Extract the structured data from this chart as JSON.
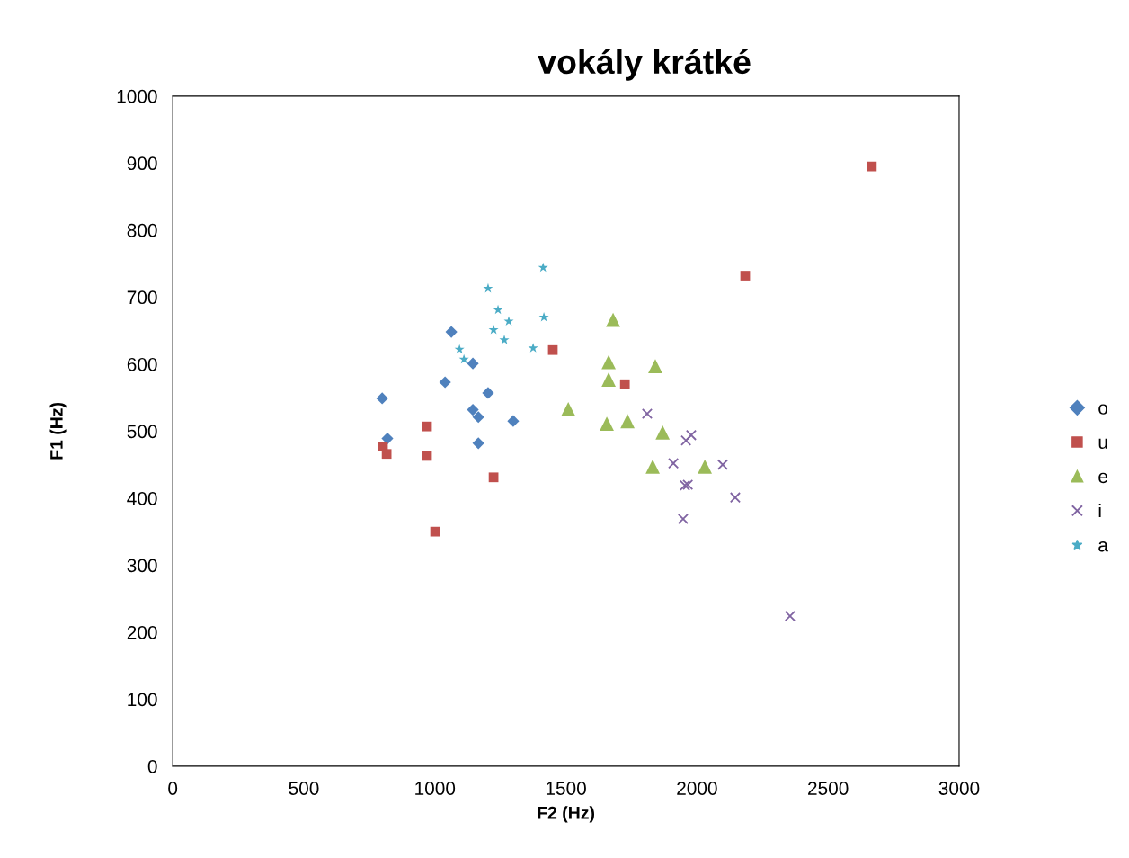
{
  "chart_data": {
    "type": "scatter",
    "title": "vokály krátké",
    "xlabel": "F2 (Hz)",
    "ylabel": "F1 (Hz)",
    "xlim": [
      0,
      3000
    ],
    "xticks": [
      0,
      500,
      1000,
      1500,
      2000,
      2500,
      3000
    ],
    "ylim": [
      0,
      1000
    ],
    "yticks": [
      0,
      100,
      200,
      300,
      400,
      500,
      600,
      700,
      800,
      900,
      1000
    ],
    "grid": false,
    "legend": "right",
    "series": [
      {
        "name": "o",
        "color": "#4f81bd",
        "marker": "diamond",
        "x": [
          799,
          819,
          1063,
          1039,
          1145,
          1203,
          1145,
          1166,
          1299,
          1166
        ],
        "values": [
          549,
          489,
          648,
          573,
          601,
          557,
          532,
          521,
          515,
          482
        ]
      },
      {
        "name": "u",
        "color": "#c0504d",
        "marker": "square",
        "x": [
          802,
          816,
          970,
          970,
          1001,
          1224,
          1450,
          1725,
          2184,
          2667
        ],
        "values": [
          477,
          466,
          507,
          463,
          350,
          431,
          621,
          570,
          732,
          895
        ]
      },
      {
        "name": "e",
        "color": "#9bbb59",
        "marker": "triangle",
        "x": [
          1680,
          1663,
          1663,
          1841,
          1509,
          1656,
          1735,
          1869,
          1831,
          2030
        ],
        "values": [
          666,
          603,
          577,
          597,
          533,
          511,
          515,
          498,
          447,
          447
        ]
      },
      {
        "name": "i",
        "color": "#8064a2",
        "marker": "cross",
        "x": [
          1810,
          1910,
          1958,
          1978,
          1954,
          1965,
          2098,
          2146,
          1947,
          2355
        ],
        "values": [
          526,
          452,
          486,
          494,
          419,
          420,
          450,
          401,
          369,
          224
        ]
      },
      {
        "name": "a",
        "color": "#4bacc6",
        "marker": "star",
        "x": [
          1203,
          1413,
          1241,
          1282,
          1224,
          1265,
          1416,
          1375,
          1094,
          1111
        ],
        "values": [
          713,
          744,
          681,
          664,
          651,
          636,
          670,
          624,
          622,
          607
        ]
      }
    ]
  }
}
